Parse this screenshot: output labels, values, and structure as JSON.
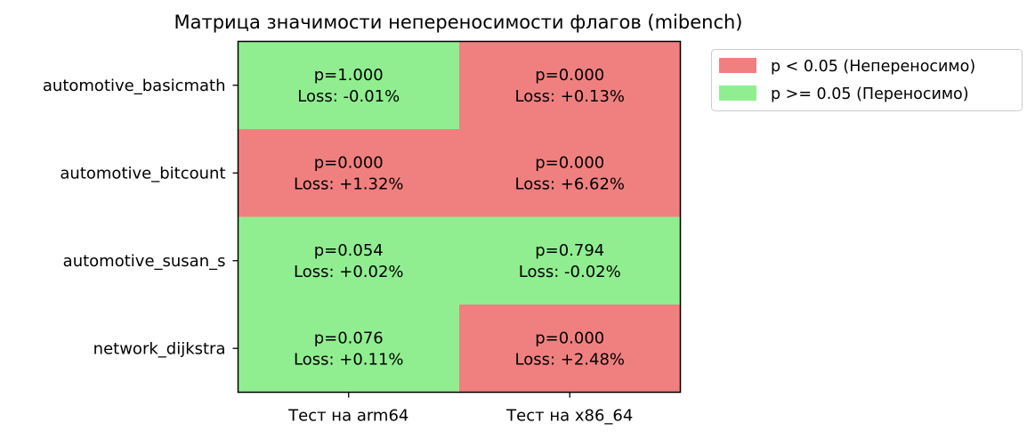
{
  "chart_data": {
    "type": "heatmap",
    "title": "Матрица значимости непереносимости флагов (mibench)",
    "columns": [
      "Тест на arm64",
      "Тест на x86_64"
    ],
    "rows": [
      "automotive_basicmath",
      "automotive_bitcount",
      "automotive_susan_s",
      "network_dijkstra"
    ],
    "cells": [
      [
        {
          "p": "p=1.000",
          "loss": "Loss: -0.01%"
        },
        {
          "p": "p=0.000",
          "loss": "Loss: +0.13%"
        }
      ],
      [
        {
          "p": "p=0.000",
          "loss": "Loss: +1.32%"
        },
        {
          "p": "p=0.000",
          "loss": "Loss: +6.62%"
        }
      ],
      [
        {
          "p": "p=0.054",
          "loss": "Loss: +0.02%"
        },
        {
          "p": "p=0.794",
          "loss": "Loss: -0.02%"
        }
      ],
      [
        {
          "p": "p=0.076",
          "loss": "Loss: +0.11%"
        },
        {
          "p": "p=0.000",
          "loss": "Loss: +2.48%"
        }
      ]
    ],
    "p_values": [
      [
        1.0,
        0.0
      ],
      [
        0.0,
        0.0
      ],
      [
        0.054,
        0.794
      ],
      [
        0.076,
        0.0
      ]
    ],
    "loss_percent": [
      [
        -0.01,
        0.13
      ],
      [
        1.32,
        6.62
      ],
      [
        0.02,
        -0.02
      ],
      [
        0.11,
        2.48
      ]
    ],
    "significance_threshold": 0.05,
    "legend": [
      {
        "label": "p < 0.05 (Непереносимо)",
        "color": "#f08080"
      },
      {
        "label": "p >= 0.05 (Переносимо)",
        "color": "#90ee90"
      }
    ],
    "legend_placement": "outside-top-right",
    "grid": false
  }
}
